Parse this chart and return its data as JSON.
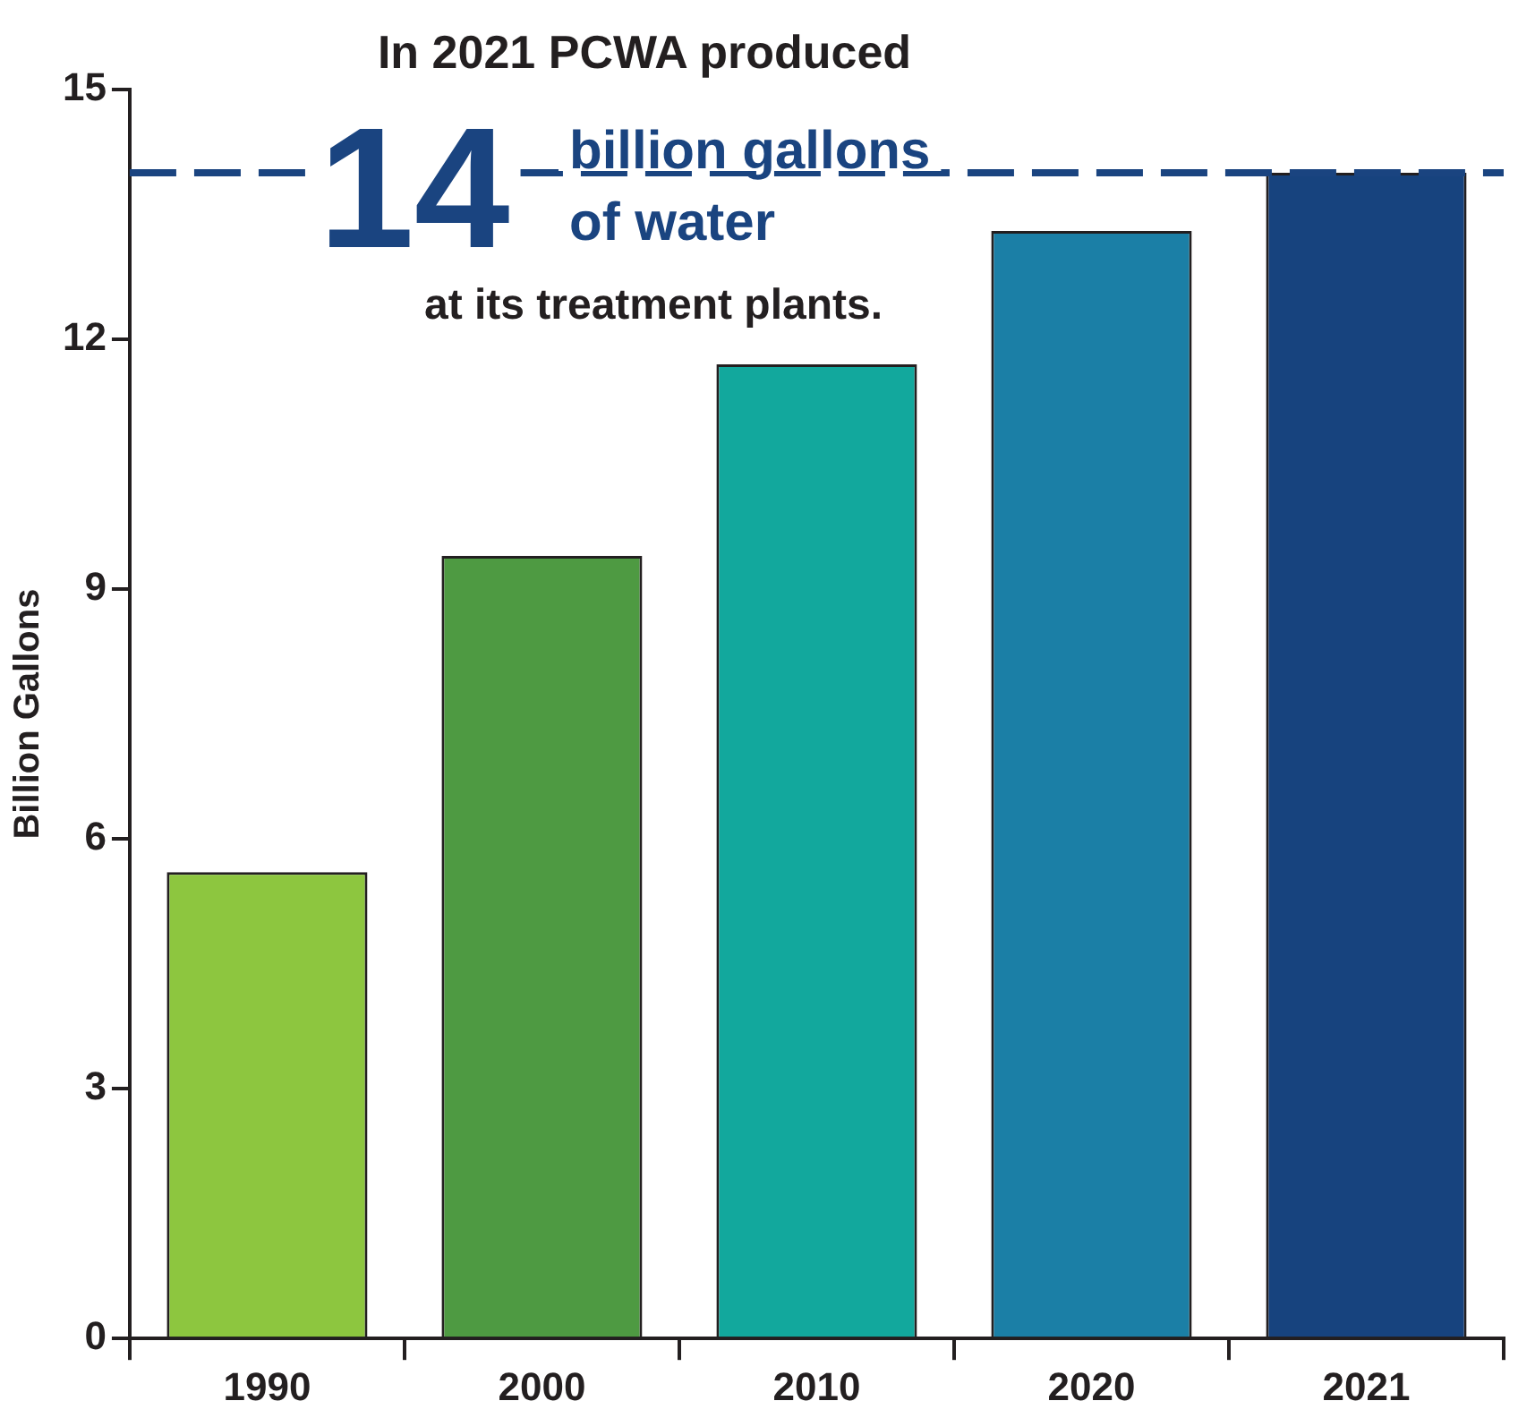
{
  "chart_data": {
    "type": "bar",
    "title": "In 2021 PCWA produced",
    "ylabel": "Billion Gallons",
    "categories": [
      "1990",
      "2000",
      "2010",
      "2020",
      "2021"
    ],
    "values": [
      5.6,
      9.4,
      11.7,
      13.3,
      14.0
    ],
    "colors": [
      "#8dc63f",
      "#4e9a42",
      "#12a89d",
      "#1b7fa6",
      "#17437e"
    ],
    "ylim": [
      0,
      15
    ],
    "yticks": [
      0,
      3,
      6,
      9,
      12,
      15
    ],
    "grid": false,
    "legend": false,
    "ref_lines": [
      {
        "axis": "y",
        "value": 14,
        "color": "#1a4480",
        "line_style": "dashed"
      }
    ],
    "annotations": [
      "14",
      "billion gallons",
      "of water",
      "at its treatment plants."
    ]
  }
}
